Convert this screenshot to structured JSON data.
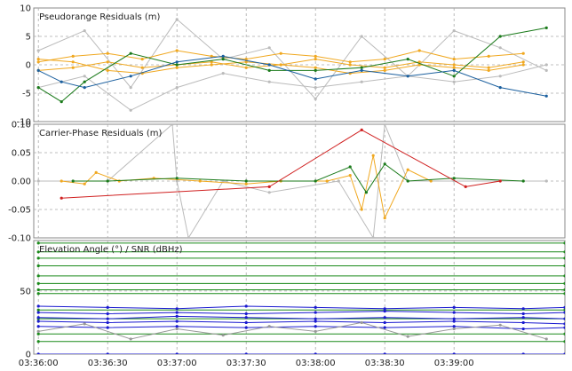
{
  "chart_data": [
    {
      "type": "scatter",
      "title": "Pseudorange Residuals (m)",
      "ylim": [
        -10,
        10
      ],
      "yticks": [
        "10",
        "5",
        "0",
        "-5",
        "-10"
      ],
      "grid": true,
      "xlim": [
        "03:35:58",
        "03:39:48"
      ],
      "series": [
        {
          "color": "#bbbbbb",
          "x": [
            "03:36:00",
            "03:36:20",
            "03:36:40",
            "03:37:00",
            "03:37:20",
            "03:37:40",
            "03:38:00",
            "03:38:20",
            "03:38:40",
            "03:39:00",
            "03:39:20",
            "03:39:40"
          ],
          "values": [
            2.5,
            6.0,
            -4.0,
            8.0,
            1.0,
            3.0,
            -6.0,
            5.0,
            -2.0,
            6.0,
            3.0,
            -1.0
          ]
        },
        {
          "color": "#bbbbbb",
          "x": [
            "03:36:00",
            "03:36:20",
            "03:36:40",
            "03:37:00",
            "03:37:20",
            "03:37:40",
            "03:38:00",
            "03:38:20",
            "03:38:40",
            "03:39:00",
            "03:39:20",
            "03:39:40"
          ],
          "values": [
            -4.0,
            -2.0,
            -8.0,
            -4.0,
            -1.5,
            -3.0,
            -4.0,
            -3.0,
            -2.0,
            -3.0,
            -2.0,
            0.0
          ]
        },
        {
          "color": "#f0a820",
          "x": [
            "03:36:00",
            "03:36:15",
            "03:36:30",
            "03:36:45",
            "03:37:00",
            "03:37:15",
            "03:37:30",
            "03:37:45",
            "03:38:00",
            "03:38:15",
            "03:38:30",
            "03:38:45",
            "03:39:00",
            "03:39:15",
            "03:39:30"
          ],
          "values": [
            0.5,
            1.5,
            2.0,
            1.0,
            2.5,
            1.5,
            1.0,
            2.0,
            1.5,
            0.5,
            1.0,
            2.5,
            1.0,
            1.5,
            2.0
          ]
        },
        {
          "color": "#f0a820",
          "x": [
            "03:36:00",
            "03:36:15",
            "03:36:30",
            "03:36:45",
            "03:37:00",
            "03:37:15",
            "03:37:30",
            "03:37:45",
            "03:38:00",
            "03:38:15",
            "03:38:30",
            "03:38:45",
            "03:39:00",
            "03:39:15",
            "03:39:30"
          ],
          "values": [
            -1.0,
            -0.5,
            0.5,
            -0.5,
            0.0,
            0.5,
            -0.5,
            0.0,
            1.0,
            0.0,
            -0.5,
            0.5,
            0.0,
            -0.5,
            0.5
          ]
        },
        {
          "color": "#f0a820",
          "x": [
            "03:36:00",
            "03:36:15",
            "03:36:30",
            "03:36:45",
            "03:37:00",
            "03:37:15",
            "03:37:30",
            "03:37:45",
            "03:38:00",
            "03:38:15",
            "03:38:30",
            "03:38:45",
            "03:39:00",
            "03:39:15",
            "03:39:30"
          ],
          "values": [
            1.0,
            0.5,
            -1.0,
            -1.5,
            -0.5,
            0.0,
            0.5,
            0.0,
            -0.5,
            -1.5,
            -1.0,
            0.0,
            -0.5,
            -1.0,
            0.0
          ]
        },
        {
          "color": "#1a7a1a",
          "x": [
            "03:36:00",
            "03:36:10",
            "03:36:20",
            "03:36:40",
            "03:37:00",
            "03:37:20",
            "03:37:40",
            "03:38:00",
            "03:38:20",
            "03:38:40",
            "03:39:00",
            "03:39:20",
            "03:39:40"
          ],
          "values": [
            -4.0,
            -6.5,
            -3.0,
            2.0,
            0.0,
            1.0,
            -1.0,
            -1.0,
            -0.5,
            1.0,
            -2.0,
            5.0,
            6.5
          ]
        },
        {
          "color": "#1a5f9e",
          "x": [
            "03:36:00",
            "03:36:10",
            "03:36:20",
            "03:36:40",
            "03:37:00",
            "03:37:20",
            "03:37:40",
            "03:38:00",
            "03:38:20",
            "03:38:40",
            "03:39:00",
            "03:39:20",
            "03:39:40"
          ],
          "values": [
            -1.0,
            -3.0,
            -4.0,
            -2.0,
            0.5,
            1.5,
            0.0,
            -2.5,
            -1.0,
            -2.0,
            -1.0,
            -4.0,
            -5.5
          ]
        }
      ]
    },
    {
      "type": "scatter",
      "title": "Carrier-Phase Residuals (m)",
      "ylim": [
        -0.1,
        0.1
      ],
      "yticks": [
        "0.10",
        "0.05",
        "0.00",
        "-0.05",
        "-0.10"
      ],
      "grid": true,
      "xlim": [
        "03:35:58",
        "03:39:48"
      ],
      "series": [
        {
          "color": "#bbbbbb",
          "x": [
            "03:36:00",
            "03:36:30",
            "03:36:58",
            "03:37:00",
            "03:37:05",
            "03:37:20",
            "03:37:40",
            "03:38:10",
            "03:38:25",
            "03:38:30",
            "03:38:40",
            "03:39:00",
            "03:39:40"
          ],
          "values": [
            0.0,
            0.0,
            0.1,
            0.0,
            -0.1,
            0.0,
            -0.02,
            0.0,
            -0.1,
            0.1,
            0.0,
            0.0,
            0.0
          ]
        },
        {
          "color": "#f0a820",
          "x": [
            "03:36:10",
            "03:36:20",
            "03:36:25",
            "03:36:35",
            "03:36:50",
            "03:37:10",
            "03:37:30",
            "03:37:45",
            "03:38:05",
            "03:38:15",
            "03:38:20",
            "03:38:25",
            "03:38:30",
            "03:38:40",
            "03:38:50"
          ],
          "values": [
            0.0,
            -0.005,
            0.015,
            0.0,
            0.005,
            0.0,
            -0.005,
            0.0,
            0.0,
            0.01,
            -0.05,
            0.045,
            -0.065,
            0.02,
            0.0
          ]
        },
        {
          "color": "#1a7a1a",
          "x": [
            "03:36:15",
            "03:36:30",
            "03:37:00",
            "03:37:30",
            "03:38:00",
            "03:38:15",
            "03:38:22",
            "03:38:30",
            "03:38:40",
            "03:39:00",
            "03:39:30"
          ],
          "values": [
            0.0,
            0.0,
            0.005,
            0.0,
            0.0,
            0.025,
            -0.02,
            0.03,
            0.0,
            0.005,
            0.0
          ]
        },
        {
          "color": "#d02020",
          "x": [
            "03:36:10",
            "03:37:40",
            "03:38:20",
            "03:39:05",
            "03:39:20"
          ],
          "values": [
            -0.03,
            -0.01,
            0.09,
            -0.01,
            0.0
          ]
        }
      ]
    },
    {
      "type": "scatter",
      "title": "Elevation Angle (°) / SNR (dBHz)",
      "ylim": [
        0,
        90
      ],
      "yticks": [
        "50",
        "0"
      ],
      "grid": true,
      "xlim": [
        "03:35:58",
        "03:39:48"
      ],
      "xticks": [
        "03:36:00",
        "03:36:30",
        "03:37:00",
        "03:37:30",
        "03:38:00",
        "03:38:30",
        "03:39:00"
      ],
      "series": [
        {
          "color": "#1a8a1a",
          "name": "",
          "x": [
            "03:36:00",
            "03:39:48"
          ],
          "values": [
            88,
            88
          ]
        },
        {
          "color": "#1a8a1a",
          "x": [
            "03:36:00",
            "03:39:48"
          ],
          "values": [
            81,
            81
          ]
        },
        {
          "color": "#1a8a1a",
          "x": [
            "03:36:00",
            "03:39:48"
          ],
          "values": [
            76,
            76
          ]
        },
        {
          "color": "#1a8a1a",
          "x": [
            "03:36:00",
            "03:39:48"
          ],
          "values": [
            70,
            70
          ]
        },
        {
          "color": "#1a8a1a",
          "x": [
            "03:36:00",
            "03:39:48"
          ],
          "values": [
            62,
            62
          ]
        },
        {
          "color": "#1a8a1a",
          "x": [
            "03:36:00",
            "03:39:48"
          ],
          "values": [
            56,
            56
          ]
        },
        {
          "color": "#1a8a1a",
          "x": [
            "03:36:00",
            "03:39:48"
          ],
          "values": [
            51,
            51
          ]
        },
        {
          "color": "#1a8a1a",
          "x": [
            "03:36:00",
            "03:39:48"
          ],
          "values": [
            48,
            48
          ]
        },
        {
          "color": "#1a8a1a",
          "x": [
            "03:36:00",
            "03:39:48"
          ],
          "values": [
            35,
            35
          ]
        },
        {
          "color": "#1a8a1a",
          "x": [
            "03:36:00",
            "03:39:48"
          ],
          "values": [
            28,
            28
          ]
        },
        {
          "color": "#1a8a1a",
          "x": [
            "03:36:00",
            "03:39:48"
          ],
          "values": [
            16,
            16
          ]
        },
        {
          "color": "#1a8a1a",
          "x": [
            "03:36:00",
            "03:39:48"
          ],
          "values": [
            10,
            10
          ]
        },
        {
          "color": "#1a1ad0",
          "x": [
            "03:36:00",
            "03:36:30",
            "03:37:00",
            "03:37:30",
            "03:38:00",
            "03:38:30",
            "03:39:00",
            "03:39:30",
            "03:39:48"
          ],
          "values": [
            38,
            37,
            36,
            38,
            37,
            36,
            37,
            36,
            37
          ]
        },
        {
          "color": "#1a1ad0",
          "x": [
            "03:36:00",
            "03:36:30",
            "03:37:00",
            "03:37:30",
            "03:38:00",
            "03:38:30",
            "03:39:00",
            "03:39:30",
            "03:39:48"
          ],
          "values": [
            33,
            32,
            33,
            32,
            33,
            34,
            33,
            32,
            33
          ]
        },
        {
          "color": "#1a1ad0",
          "x": [
            "03:36:00",
            "03:36:30",
            "03:37:00",
            "03:37:30",
            "03:38:00",
            "03:38:30",
            "03:39:00",
            "03:39:30",
            "03:39:48"
          ],
          "values": [
            29,
            28,
            30,
            29,
            28,
            29,
            28,
            29,
            28
          ]
        },
        {
          "color": "#1a1ad0",
          "x": [
            "03:36:00",
            "03:36:30",
            "03:37:00",
            "03:37:30",
            "03:38:00",
            "03:38:30",
            "03:39:00",
            "03:39:30",
            "03:39:48"
          ],
          "values": [
            26,
            25,
            26,
            25,
            26,
            25,
            26,
            25,
            24
          ]
        },
        {
          "color": "#1a1ad0",
          "x": [
            "03:36:00",
            "03:36:30",
            "03:37:00",
            "03:37:30",
            "03:38:00",
            "03:38:30",
            "03:39:00",
            "03:39:30",
            "03:39:48"
          ],
          "values": [
            22,
            21,
            22,
            21,
            22,
            21,
            22,
            20,
            21
          ]
        },
        {
          "color": "#1a1ad0",
          "x": [
            "03:36:00",
            "03:36:30",
            "03:37:00",
            "03:37:30",
            "03:38:00",
            "03:38:30",
            "03:39:00",
            "03:39:30",
            "03:39:48"
          ],
          "values": [
            0,
            0,
            0,
            0,
            0,
            0,
            0,
            0,
            0
          ]
        },
        {
          "color": "#999999",
          "x": [
            "03:36:00",
            "03:36:20",
            "03:36:40",
            "03:37:00",
            "03:37:20",
            "03:37:40",
            "03:38:00",
            "03:38:20",
            "03:38:40",
            "03:39:00",
            "03:39:20",
            "03:39:40"
          ],
          "values": [
            18,
            24,
            12,
            20,
            15,
            22,
            18,
            25,
            14,
            20,
            23,
            12
          ]
        }
      ]
    }
  ]
}
